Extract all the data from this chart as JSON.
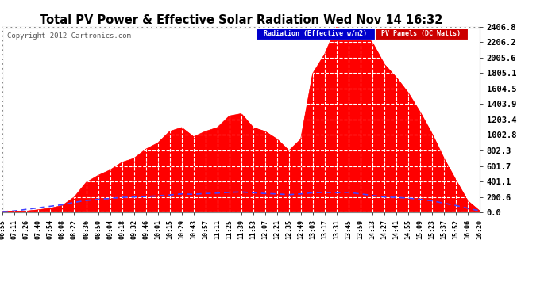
{
  "title": "Total PV Power & Effective Solar Radiation Wed Nov 14 16:32",
  "copyright": "Copyright 2012 Cartronics.com",
  "legend_blue": "Radiation (Effective w/m2)",
  "legend_red": "PV Panels (DC Watts)",
  "bg_color": "#ffffff",
  "plot_bg_color": "#ffffff",
  "red_color": "#ff0000",
  "blue_line_color": "#4444ff",
  "grid_color": "#aaaaaa",
  "ymax": 2406.8,
  "yticks": [
    0.0,
    200.6,
    401.1,
    601.7,
    802.3,
    1002.8,
    1203.4,
    1403.9,
    1604.5,
    1805.1,
    2005.6,
    2206.2,
    2406.8
  ],
  "xtick_labels": [
    "06:55",
    "07:11",
    "07:26",
    "07:40",
    "07:54",
    "08:08",
    "08:22",
    "08:36",
    "08:50",
    "09:04",
    "09:18",
    "09:32",
    "09:46",
    "10:01",
    "10:15",
    "10:29",
    "10:43",
    "10:57",
    "11:11",
    "11:25",
    "11:39",
    "11:53",
    "12:07",
    "12:21",
    "12:35",
    "12:49",
    "13:03",
    "13:17",
    "13:31",
    "13:45",
    "13:59",
    "14:13",
    "14:27",
    "14:41",
    "14:55",
    "15:09",
    "15:23",
    "15:37",
    "15:52",
    "16:06",
    "16:20"
  ],
  "pv_values": [
    5,
    10,
    18,
    35,
    55,
    90,
    200,
    390,
    480,
    550,
    650,
    700,
    820,
    900,
    1050,
    1100,
    980,
    1050,
    1100,
    1250,
    1280,
    1100,
    1050,
    950,
    800,
    950,
    1800,
    2050,
    2406,
    2320,
    2380,
    2200,
    1920,
    1750,
    1550,
    1300,
    1020,
    700,
    420,
    150,
    20
  ],
  "rad_values": [
    10,
    20,
    40,
    60,
    80,
    100,
    130,
    155,
    170,
    180,
    195,
    200,
    205,
    215,
    225,
    240,
    235,
    245,
    250,
    260,
    265,
    255,
    245,
    240,
    230,
    240,
    255,
    260,
    255,
    260,
    240,
    220,
    200,
    195,
    185,
    170,
    150,
    120,
    90,
    55,
    20
  ]
}
